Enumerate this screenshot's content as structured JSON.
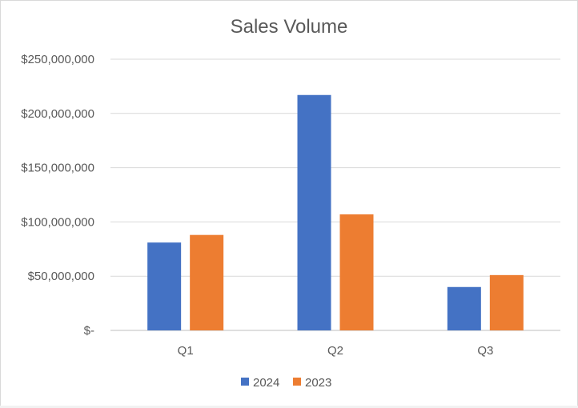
{
  "chart_data": {
    "type": "bar",
    "title": "Sales Volume",
    "xlabel": "",
    "ylabel": "",
    "categories": [
      "Q1",
      "Q2",
      "Q3"
    ],
    "series": [
      {
        "name": "2024",
        "color": "#4472C4",
        "values": [
          81000000,
          217000000,
          40000000
        ]
      },
      {
        "name": "2023",
        "color": "#ED7D31",
        "values": [
          88000000,
          107000000,
          51000000
        ]
      }
    ],
    "ylim": [
      0,
      250000000
    ],
    "yticks": [
      {
        "value": 0,
        "label": "$-"
      },
      {
        "value": 50000000,
        "label": "$50,000,000"
      },
      {
        "value": 100000000,
        "label": "$100,000,000"
      },
      {
        "value": 150000000,
        "label": "$150,000,000"
      },
      {
        "value": 200000000,
        "label": "$200,000,000"
      },
      {
        "value": 250000000,
        "label": "$250,000,000"
      }
    ],
    "grid": true,
    "legend_position": "bottom",
    "colors": {
      "gridline": "#d9d9d9",
      "axis": "#bfbfbf",
      "text": "#595959"
    }
  }
}
